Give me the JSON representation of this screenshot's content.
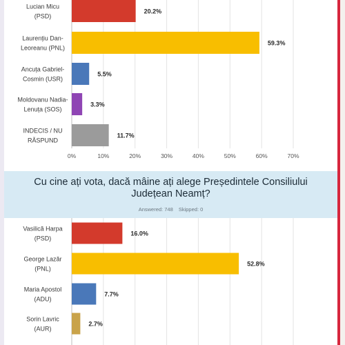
{
  "chart_data": [
    {
      "type": "bar",
      "orientation": "horizontal",
      "categories": [
        "Lucian Micu (PSD)",
        "Laurențiu Dan-Leoreanu (PNL)",
        "Ancuța Gabriel-Cosmin (USR)",
        "Moldovanu Nadia-Lenuța (SOS)",
        "INDECIS / NU RĂSPUND"
      ],
      "category_lines": [
        [
          "Lucian Micu",
          "(PSD)"
        ],
        [
          "Laurențiu Dan-",
          "Leoreanu (PNL)"
        ],
        [
          "Ancuța Gabriel-",
          "Cosmin (USR)"
        ],
        [
          "Moldovanu Nadia-",
          "Lenuța (SOS)"
        ],
        [
          "INDECIS / NU",
          "RĂSPUND"
        ]
      ],
      "values": [
        20.2,
        59.3,
        5.5,
        3.3,
        11.7
      ],
      "value_labels": [
        "20.2%",
        "59.3%",
        "5.5%",
        "3.3%",
        "11.7%"
      ],
      "colors": [
        "#d33a2c",
        "#f8be00",
        "#4a78b9",
        "#8f45b4",
        "#9b9b9b"
      ],
      "xlim": [
        0,
        70
      ],
      "ticks": [
        "0%",
        "10%",
        "20%",
        "30%",
        "40%",
        "50%",
        "60%",
        "70%"
      ],
      "grid": true
    },
    {
      "type": "bar",
      "orientation": "horizontal",
      "title": "Cu cine ați vota, dacă mâine ați alege Președintele Consiliului Județean Neamț?",
      "categories": [
        "Vasilică Harpa (PSD)",
        "George Lazăr (PNL)",
        "Maria Apostol (ADU)",
        "Sorin Lavric (AUR)"
      ],
      "category_lines": [
        [
          "Vasilică Harpa",
          "(PSD)"
        ],
        [
          "George Lazăr",
          "(PNL)"
        ],
        [
          "Maria Apostol",
          "(ADU)"
        ],
        [
          "Sorin Lavric",
          "(AUR)"
        ]
      ],
      "values": [
        16.0,
        52.8,
        7.7,
        2.7
      ],
      "value_labels": [
        "16.0%",
        "52.8%",
        "7.7%",
        "2.7%"
      ],
      "colors": [
        "#d33a2c",
        "#f8be00",
        "#4a78b9",
        "#c9a34a"
      ],
      "xlim": [
        0,
        70
      ],
      "grid": true
    }
  ],
  "poll2": {
    "title_line1": "Cu cine ați vota, dacă mâine ați alege Președintele Consiliului",
    "title_line2": "Județean Neamț?",
    "answered": "Answered: 748",
    "skipped": "Skipped: 0"
  }
}
